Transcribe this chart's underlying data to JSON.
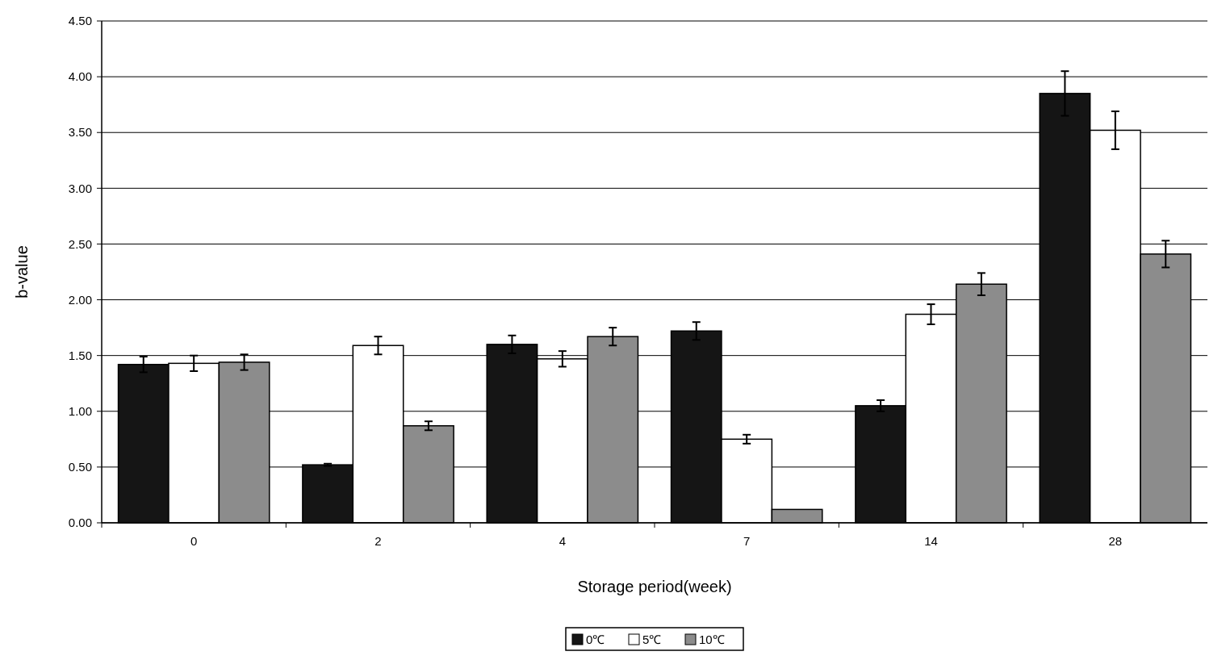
{
  "chart_data": {
    "type": "bar",
    "xlabel": "Storage period(week)",
    "ylabel": "b-value",
    "categories": [
      "0",
      "2",
      "4",
      "7",
      "14",
      "28"
    ],
    "series": [
      {
        "name": "0℃",
        "color": "#151515",
        "values": [
          1.42,
          0.52,
          1.6,
          1.72,
          1.05,
          3.85
        ],
        "errors": [
          0.07,
          0.01,
          0.08,
          0.08,
          0.05,
          0.2
        ]
      },
      {
        "name": "5℃",
        "color": "#ffffff",
        "values": [
          1.43,
          1.59,
          1.47,
          0.75,
          1.87,
          3.52
        ],
        "errors": [
          0.07,
          0.08,
          0.07,
          0.04,
          0.09,
          0.17
        ]
      },
      {
        "name": "10℃",
        "color": "#8c8c8c",
        "values": [
          1.44,
          0.87,
          1.67,
          0.12,
          2.14,
          2.41
        ],
        "errors": [
          0.07,
          0.04,
          0.08,
          null,
          0.1,
          0.12
        ]
      }
    ],
    "ylim": [
      0,
      4.5
    ],
    "yticks": [
      {
        "value": 0,
        "label": "0.00"
      },
      {
        "value": 0.5,
        "label": "0.50"
      },
      {
        "value": 1,
        "label": "1.00"
      },
      {
        "value": 1.5,
        "label": "1.50"
      },
      {
        "value": 2,
        "label": "2.00"
      },
      {
        "value": 2.5,
        "label": "2.50"
      },
      {
        "value": 3,
        "label": "3.00"
      },
      {
        "value": 3.5,
        "label": "3.50"
      },
      {
        "value": 4,
        "label": "4.00"
      },
      {
        "value": 4.5,
        "label": "4.50"
      }
    ],
    "grid": "y",
    "legend": "bottom"
  }
}
